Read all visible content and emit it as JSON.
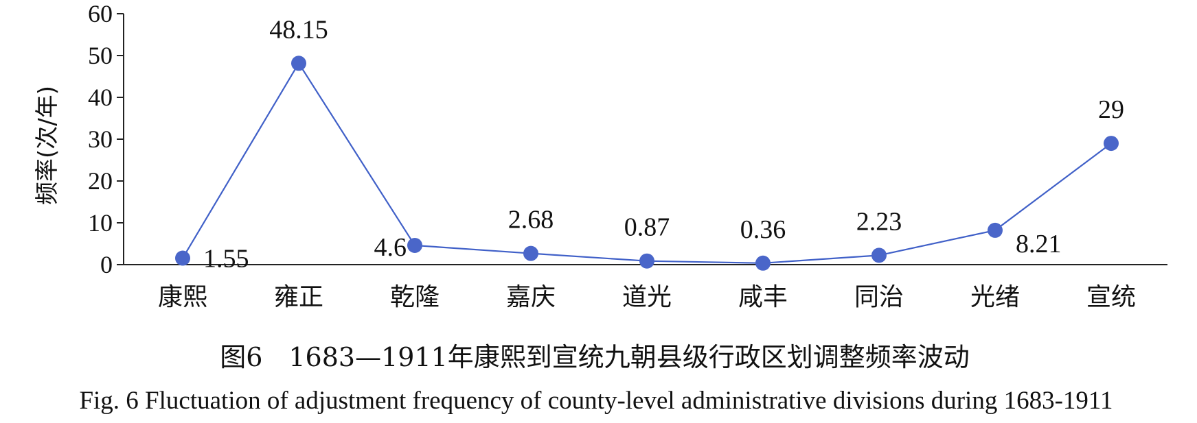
{
  "chart_data": {
    "type": "line",
    "categories": [
      "康熙",
      "雍正",
      "乾隆",
      "嘉庆",
      "道光",
      "咸丰",
      "同治",
      "光绪",
      "宣统"
    ],
    "series": [
      {
        "values": [
          1.55,
          48.15,
          4.6,
          2.68,
          0.87,
          0.36,
          2.23,
          8.21,
          29
        ],
        "data_labels": [
          "1.55",
          "48.15",
          "4.6",
          "2.68",
          "0.87",
          "0.36",
          "2.23",
          "8.21",
          "29"
        ]
      }
    ],
    "ylabel": "频率(次/年)",
    "xlabel": "",
    "ylim": [
      0,
      60
    ],
    "yticks": [
      0,
      10,
      20,
      30,
      40,
      50,
      60
    ],
    "grid": false,
    "line_color": "#4060c8",
    "marker_color": "#4a66c9"
  },
  "caption": {
    "chinese": "图6　1683—1911年康熙到宣统九朝县级行政区划调整频率波动",
    "english": "Fig. 6   Fluctuation of adjustment frequency of county-level administrative divisions during 1683-1911"
  }
}
